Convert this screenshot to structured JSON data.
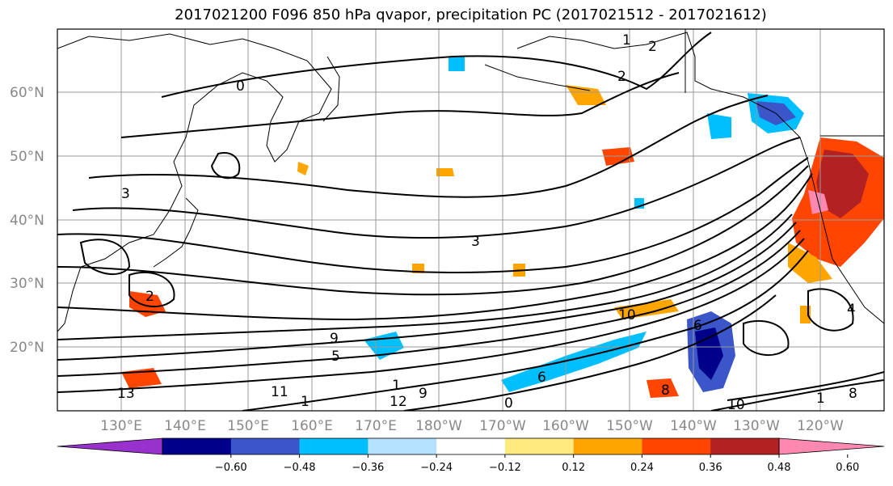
{
  "title": "2017021200 F096 850 hPa qvapor, precipitation PC (2017021512 - 2017021612)",
  "latitude_labels": [
    "60°N",
    "50°N",
    "40°N",
    "30°N",
    "20°N"
  ],
  "longitude_labels": [
    "130°E",
    "140°E",
    "150°E",
    "160°E",
    "170°E",
    "180°W",
    "170°W",
    "160°W",
    "150°W",
    "140°W",
    "130°W",
    "120°W"
  ],
  "colorbar": {
    "ticks": [
      "−0.60",
      "−0.48",
      "−0.36",
      "−0.24",
      "−0.12",
      "0.12",
      "0.24",
      "0.36",
      "0.48",
      "0.60"
    ],
    "colors": [
      "#9932cc",
      "#00008b",
      "#3a56c8",
      "#00bfff",
      "#b3e1ff",
      "#ffffff",
      "#ffea80",
      "#ffa500",
      "#ff4500",
      "#b22222",
      "#ff88b0"
    ]
  },
  "contour_labels": [
    "0",
    "2",
    "2",
    "2",
    "3",
    "3",
    "1",
    "1",
    "9",
    "5",
    "6",
    "10",
    "4",
    "13",
    "11",
    "12",
    "9",
    "0",
    "8",
    "8",
    "10",
    "6",
    "1",
    "1"
  ]
}
